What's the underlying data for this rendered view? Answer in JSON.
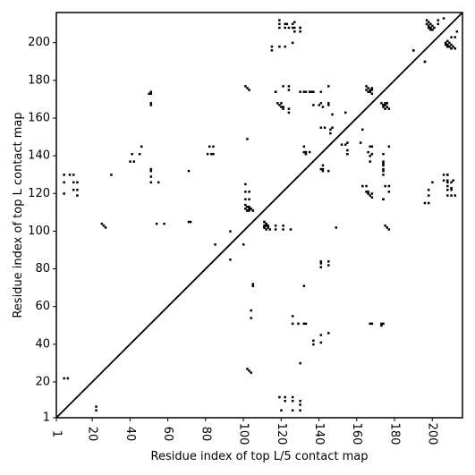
{
  "chart_data": {
    "type": "scatter",
    "title": "",
    "xlabel": "Residue index of top L/5 contact map",
    "ylabel": "Residue index of top L contact map",
    "xlim": [
      1,
      216
    ],
    "ylim": [
      1,
      216
    ],
    "x_ticks": [
      1,
      20,
      40,
      60,
      80,
      100,
      120,
      140,
      160,
      180,
      200
    ],
    "y_ticks": [
      1,
      20,
      40,
      60,
      80,
      100,
      120,
      140,
      160,
      180,
      200
    ],
    "grid": false,
    "legend": "none",
    "marker_color": "#000000",
    "diagonal": true,
    "upper_triangle_points": [
      [
        5,
        22
      ],
      [
        7,
        22
      ],
      [
        5,
        120
      ],
      [
        5,
        126
      ],
      [
        5,
        130
      ],
      [
        8,
        130
      ],
      [
        10,
        130
      ],
      [
        10,
        126
      ],
      [
        12,
        126
      ],
      [
        10,
        122
      ],
      [
        12,
        122
      ],
      [
        12,
        119
      ],
      [
        25,
        104
      ],
      [
        26,
        103
      ],
      [
        27,
        102
      ],
      [
        30,
        130
      ],
      [
        40,
        137
      ],
      [
        41,
        141
      ],
      [
        42,
        137
      ],
      [
        45,
        141
      ],
      [
        46,
        145
      ],
      [
        50,
        173
      ],
      [
        51,
        173
      ],
      [
        51,
        168
      ],
      [
        51,
        167
      ],
      [
        51,
        132
      ],
      [
        51,
        129
      ],
      [
        51,
        126
      ],
      [
        54,
        104
      ],
      [
        55,
        126
      ],
      [
        58,
        104
      ],
      [
        71,
        105
      ],
      [
        72,
        105
      ],
      [
        71,
        132
      ],
      [
        81,
        141
      ],
      [
        82,
        145
      ],
      [
        83,
        141
      ],
      [
        84,
        145
      ],
      [
        84,
        141
      ],
      [
        85,
        93
      ],
      [
        93,
        100
      ],
      [
        101,
        177
      ],
      [
        102,
        176
      ],
      [
        103,
        175
      ],
      [
        102,
        149
      ],
      [
        101,
        125
      ],
      [
        101,
        121
      ],
      [
        103,
        121
      ],
      [
        101,
        117
      ],
      [
        103,
        117
      ],
      [
        101,
        114
      ],
      [
        102,
        113
      ],
      [
        103,
        112
      ],
      [
        104,
        112
      ],
      [
        105,
        111
      ],
      [
        101,
        112
      ],
      [
        102,
        111
      ],
      [
        103,
        111
      ],
      [
        111,
        105
      ],
      [
        112,
        104
      ],
      [
        113,
        103
      ],
      [
        113,
        102
      ],
      [
        111,
        102
      ],
      [
        115,
        198
      ],
      [
        115,
        196
      ],
      [
        117,
        174
      ],
      [
        118,
        168
      ],
      [
        119,
        167
      ],
      [
        120,
        168
      ],
      [
        120,
        166
      ],
      [
        121,
        165
      ],
      [
        119,
        198
      ],
      [
        122,
        198
      ],
      [
        119,
        212
      ],
      [
        119,
        210
      ],
      [
        119,
        208
      ],
      [
        122,
        210
      ],
      [
        123,
        210
      ],
      [
        122,
        208
      ],
      [
        124,
        208
      ],
      [
        121,
        177
      ],
      [
        124,
        177
      ],
      [
        124,
        175
      ],
      [
        124,
        165
      ],
      [
        124,
        163
      ],
      [
        126,
        200
      ],
      [
        127,
        211
      ],
      [
        127,
        208
      ],
      [
        127,
        206
      ],
      [
        130,
        208
      ],
      [
        130,
        206
      ],
      [
        130,
        174
      ],
      [
        132,
        174
      ],
      [
        132,
        145
      ],
      [
        132,
        142
      ],
      [
        133,
        141
      ],
      [
        135,
        142
      ],
      [
        133,
        51
      ],
      [
        135,
        174
      ],
      [
        136,
        174
      ],
      [
        137,
        174
      ],
      [
        137,
        167
      ],
      [
        140,
        167
      ],
      [
        141,
        168
      ],
      [
        141,
        155
      ],
      [
        142,
        133
      ],
      [
        141,
        174
      ],
      [
        143,
        155
      ],
      [
        145,
        168
      ],
      [
        145,
        167
      ],
      [
        145,
        177
      ],
      [
        146,
        152
      ],
      [
        147,
        155
      ],
      [
        147,
        162
      ],
      [
        154,
        163
      ],
      [
        154,
        146
      ],
      [
        165,
        177
      ],
      [
        166,
        176
      ],
      [
        167,
        175
      ],
      [
        167,
        174
      ],
      [
        166,
        174
      ],
      [
        165,
        175
      ],
      [
        168,
        176
      ],
      [
        168,
        175
      ],
      [
        166,
        142
      ],
      [
        166,
        121
      ],
      [
        173,
        168
      ],
      [
        174,
        167
      ],
      [
        174,
        133
      ],
      [
        174,
        117
      ],
      [
        174,
        51
      ],
      [
        190,
        196
      ],
      [
        196,
        190
      ],
      [
        197,
        212
      ],
      [
        198,
        211
      ],
      [
        197,
        210
      ],
      [
        198,
        209
      ],
      [
        199,
        208
      ],
      [
        200,
        209
      ],
      [
        200,
        207
      ],
      [
        201,
        208
      ],
      [
        199,
        210
      ],
      [
        198,
        208
      ],
      [
        203,
        212
      ],
      [
        203,
        210
      ],
      [
        206,
        213
      ],
      [
        207,
        200
      ],
      [
        208,
        199
      ],
      [
        209,
        198
      ],
      [
        210,
        197
      ],
      [
        207,
        199
      ],
      [
        208,
        198
      ],
      [
        208,
        130
      ],
      [
        208,
        126
      ],
      [
        210,
        126
      ]
    ]
  }
}
